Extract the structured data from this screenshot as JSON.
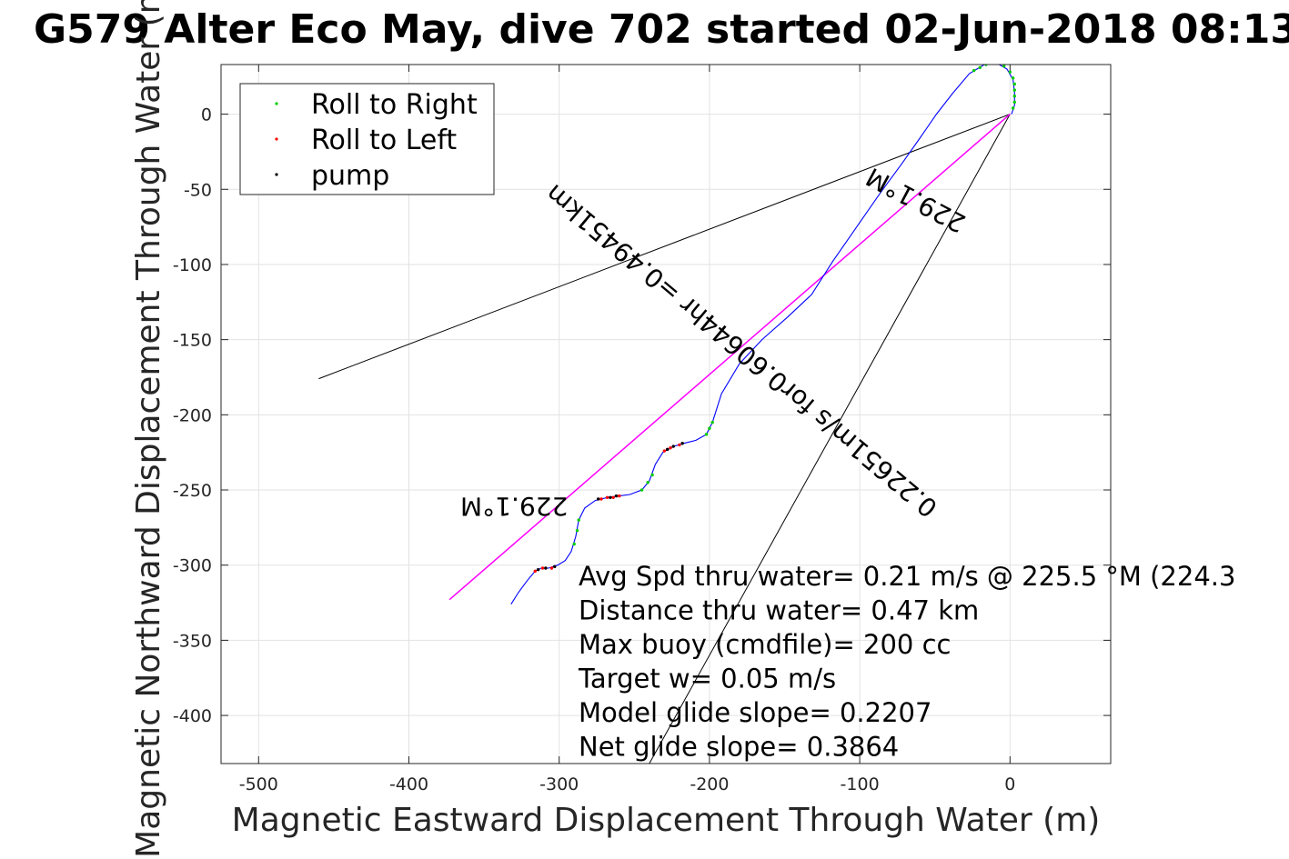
{
  "chart_data": {
    "type": "scatter",
    "title": "G579 Alter Eco May, dive 702 started 02-Jun-2018 08:13",
    "xlabel": "Magnetic Eastward Displacement Through Water (m)",
    "ylabel": "Magnetic Northward Displacement Through Water (m)",
    "xlim": [
      -525,
      67
    ],
    "ylim": [
      -432,
      33
    ],
    "xticks": [
      -500,
      -400,
      -300,
      -200,
      -100,
      0
    ],
    "yticks": [
      -400,
      -350,
      -300,
      -250,
      -200,
      -150,
      -100,
      -50,
      0
    ],
    "xticklabels": [
      "-500",
      "-400",
      "-300",
      "-200",
      "-100",
      "0"
    ],
    "yticklabels": [
      "-400",
      "-350",
      "-300",
      "-250",
      "-200",
      "-150",
      "-100",
      "-50",
      "0"
    ],
    "grid": true,
    "legend_position": "top-left",
    "legend": [
      {
        "label": "Roll to Right",
        "color": "#00cc00"
      },
      {
        "label": "Roll to Left",
        "color": "#ff0000"
      },
      {
        "label": "pump",
        "color": "#000000"
      }
    ],
    "colors": {
      "track": "#0000ff",
      "mean_heading": "#ff00ff",
      "lines": "#000000",
      "roll_right": "#00cc00",
      "roll_left": "#ff0000",
      "grid": "#e2e2e2",
      "text": "#262626"
    },
    "series": [
      {
        "kind": "track",
        "points": [
          [
            -332,
            -326
          ],
          [
            -327,
            -318
          ],
          [
            -321,
            -310
          ],
          [
            -316,
            -304
          ],
          [
            -312,
            -302
          ],
          [
            -307,
            -302
          ],
          [
            -301,
            -300
          ],
          [
            -296,
            -297
          ],
          [
            -292,
            -291
          ],
          [
            -289,
            -281
          ],
          [
            -287,
            -270
          ],
          [
            -283,
            -262
          ],
          [
            -276,
            -257
          ],
          [
            -268,
            -255
          ],
          [
            -260,
            -254
          ],
          [
            -253,
            -253
          ],
          [
            -245,
            -250
          ],
          [
            -240,
            -244
          ],
          [
            -236,
            -233
          ],
          [
            -231,
            -225
          ],
          [
            -224,
            -221
          ],
          [
            -217,
            -219
          ],
          [
            -209,
            -217
          ],
          [
            -202,
            -213
          ],
          [
            -198,
            -205
          ],
          [
            -192,
            -186
          ],
          [
            -180,
            -166
          ],
          [
            -165,
            -150
          ],
          [
            -148,
            -135
          ],
          [
            -132,
            -120
          ],
          [
            -118,
            -98
          ],
          [
            -102,
            -75
          ],
          [
            -86,
            -52
          ],
          [
            -72,
            -33
          ],
          [
            -60,
            -16
          ],
          [
            -49,
            0
          ],
          [
            -38,
            14
          ],
          [
            -27,
            27
          ],
          [
            -17,
            33
          ],
          [
            -9,
            34
          ],
          [
            -2,
            30
          ],
          [
            2,
            23
          ],
          [
            3,
            14
          ],
          [
            3,
            6
          ],
          [
            1,
            0
          ]
        ]
      },
      {
        "kind": "roll_right",
        "points": [
          [
            -290,
            -286
          ],
          [
            -288,
            -277
          ],
          [
            -287,
            -270
          ],
          [
            -245,
            -250
          ],
          [
            -241,
            -245
          ],
          [
            -238,
            -240
          ],
          [
            -202,
            -213
          ],
          [
            -200,
            -209
          ],
          [
            -198,
            -205
          ],
          [
            -24,
            29
          ],
          [
            -20,
            31
          ],
          [
            -16,
            33
          ],
          [
            -12,
            34
          ],
          [
            -8,
            34
          ],
          [
            -4,
            32
          ],
          [
            0,
            28
          ],
          [
            2,
            24
          ],
          [
            3,
            20
          ],
          [
            3,
            16
          ],
          [
            3,
            12
          ],
          [
            3,
            8
          ],
          [
            2,
            4
          ]
        ]
      },
      {
        "kind": "roll_left",
        "points": [
          [
            -316,
            -304
          ],
          [
            -311,
            -302
          ],
          [
            -305,
            -302
          ],
          [
            -272,
            -256
          ],
          [
            -268,
            -255
          ],
          [
            -264,
            -255
          ],
          [
            -260,
            -254
          ],
          [
            -230,
            -224
          ],
          [
            -226,
            -222
          ],
          [
            -220,
            -220
          ]
        ]
      },
      {
        "kind": "pump",
        "points": [
          [
            -314,
            -303
          ],
          [
            -309,
            -302
          ],
          [
            -303,
            -301
          ],
          [
            -274,
            -256
          ],
          [
            -266,
            -255
          ],
          [
            -262,
            -254
          ],
          [
            -228,
            -223
          ],
          [
            -224,
            -221
          ],
          [
            -218,
            -219
          ]
        ]
      },
      {
        "kind": "mean_heading",
        "points": [
          [
            -373,
            -323
          ],
          [
            0,
            0
          ]
        ]
      },
      {
        "kind": "black_line",
        "points": [
          [
            -460,
            -176
          ],
          [
            0,
            0
          ]
        ]
      },
      {
        "kind": "black_line",
        "points": [
          [
            -240,
            -432
          ],
          [
            0,
            0
          ]
        ]
      }
    ],
    "annotations": [
      {
        "text": "229.1°M",
        "x": -330,
        "y": -255,
        "rotation_deg": 180
      },
      {
        "text": "0.22651m/s for0.60644hr =0.49451km",
        "x": -175,
        "y": -153,
        "rotation_deg": 220
      },
      {
        "text": "229.1°M",
        "x": -60,
        "y": -52,
        "rotation_deg": 208
      }
    ],
    "stats": [
      "Avg Spd thru water=  0.21 m/s @ 225.5 °M (224.3",
      "Distance thru water=  0.47 km",
      "Max buoy (cmdfile)= 200 cc",
      "Target w= 0.05 m/s",
      "Model glide slope= 0.2207",
      "Net glide slope= 0.3864"
    ]
  }
}
